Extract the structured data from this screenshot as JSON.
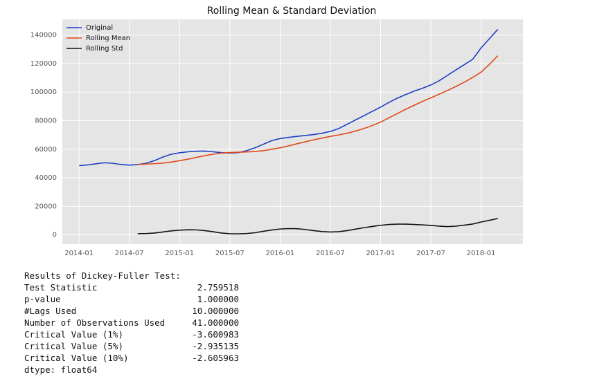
{
  "chart_data": {
    "type": "line",
    "title": "Rolling Mean & Standard Deviation",
    "x": [
      "2014-01",
      "2014-02",
      "2014-03",
      "2014-04",
      "2014-05",
      "2014-06",
      "2014-07",
      "2014-08",
      "2014-09",
      "2014-10",
      "2014-11",
      "2014-12",
      "2015-01",
      "2015-02",
      "2015-03",
      "2015-04",
      "2015-05",
      "2015-06",
      "2015-07",
      "2015-08",
      "2015-09",
      "2015-10",
      "2015-11",
      "2015-12",
      "2016-01",
      "2016-02",
      "2016-03",
      "2016-04",
      "2016-05",
      "2016-06",
      "2016-07",
      "2016-08",
      "2016-09",
      "2016-10",
      "2016-11",
      "2016-12",
      "2017-01",
      "2017-02",
      "2017-03",
      "2017-04",
      "2017-05",
      "2017-06",
      "2017-07",
      "2017-08",
      "2017-09",
      "2017-10",
      "2017-11",
      "2017-12",
      "2018-01",
      "2018-02",
      "2018-03"
    ],
    "series": [
      {
        "name": "Original",
        "color": "#1b3fc4",
        "values": [
          48500,
          49000,
          49800,
          50500,
          50200,
          49300,
          48900,
          49200,
          50200,
          52000,
          54500,
          56500,
          57500,
          58200,
          58600,
          58700,
          58200,
          57600,
          57300,
          57600,
          59000,
          61000,
          63500,
          66000,
          67500,
          68300,
          69000,
          69600,
          70300,
          71200,
          72500,
          74500,
          77500,
          80500,
          83500,
          86500,
          89500,
          92800,
          95800,
          98300,
          100700,
          102700,
          105000,
          108000,
          111800,
          115600,
          119300,
          123000,
          131000,
          137500,
          144000
        ]
      },
      {
        "name": "Rolling Mean",
        "color": "#e2491a",
        "values": [
          null,
          null,
          null,
          null,
          null,
          null,
          null,
          49300,
          49600,
          49900,
          50300,
          51000,
          52000,
          53000,
          54300,
          55500,
          56500,
          57300,
          57700,
          57900,
          58100,
          58400,
          59000,
          60000,
          61000,
          62300,
          63800,
          65200,
          66600,
          67800,
          69000,
          70000,
          71200,
          72700,
          74500,
          76600,
          79000,
          82000,
          85000,
          88000,
          90800,
          93500,
          96000,
          98600,
          101200,
          104000,
          107000,
          110300,
          114000,
          119500,
          125500
        ]
      },
      {
        "name": "Rolling Std",
        "color": "#111111",
        "values": [
          null,
          null,
          null,
          null,
          null,
          null,
          null,
          800,
          900,
          1300,
          2000,
          2800,
          3300,
          3600,
          3500,
          3000,
          2200,
          1300,
          800,
          700,
          900,
          1500,
          2500,
          3400,
          4100,
          4400,
          4300,
          3800,
          3000,
          2300,
          2000,
          2200,
          3000,
          4000,
          5000,
          5900,
          6700,
          7300,
          7500,
          7500,
          7300,
          7000,
          6600,
          6100,
          5800,
          6100,
          6800,
          7600,
          9000,
          10200,
          11500
        ]
      }
    ],
    "xlim": [
      "2013-11",
      "2018-06"
    ],
    "xticks": [
      "2014-01",
      "2014-07",
      "2015-01",
      "2015-07",
      "2016-01",
      "2016-07",
      "2017-01",
      "2017-07",
      "2018-01"
    ],
    "ylim": [
      -6500,
      151000
    ],
    "yticks": [
      0,
      20000,
      40000,
      60000,
      80000,
      100000,
      120000,
      140000
    ],
    "grid": true,
    "legend": "upper left"
  },
  "output": {
    "heading": "Results of Dickey-Fuller Test:",
    "rows": [
      [
        "Test Statistic",
        "2.759518"
      ],
      [
        "p-value",
        "1.000000"
      ],
      [
        "#Lags Used",
        "10.000000"
      ],
      [
        "Number of Observations Used",
        "41.000000"
      ],
      [
        "Critical Value (1%)",
        "-3.600983"
      ],
      [
        "Critical Value (5%)",
        "-2.935135"
      ],
      [
        "Critical Value (10%)",
        "-2.605963"
      ]
    ],
    "footer": "dtype: float64"
  }
}
